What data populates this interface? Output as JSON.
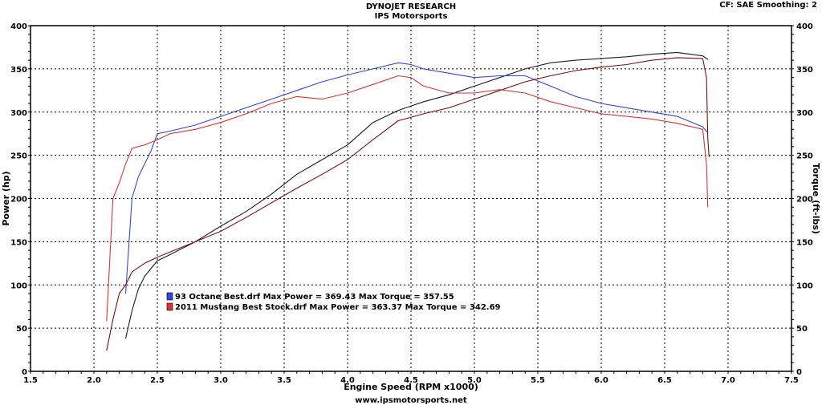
{
  "header": {
    "title": "DYNOJET RESEARCH",
    "subtitle": "IPS Motorsports",
    "settings": "CF: SAE  Smoothing: 2"
  },
  "footer": {
    "url": "www.ipsmotorsports.net"
  },
  "chart_data": {
    "type": "line",
    "xlabel": "Engine Speed (RPM x1000)",
    "ylabel_left": "Power (hp)",
    "ylabel_right": "Torque (ft-lbs)",
    "xlim": [
      1.5,
      7.5
    ],
    "ylim": [
      0,
      400
    ],
    "xticks": [
      1.5,
      2.0,
      2.5,
      3.0,
      3.5,
      4.0,
      4.5,
      5.0,
      5.5,
      6.0,
      6.5,
      7.0,
      7.5
    ],
    "yticks": [
      0,
      50,
      100,
      150,
      200,
      250,
      300,
      350,
      400
    ],
    "grid": true,
    "legend": [
      {
        "text": "93 Octane Best.drf Max Power = 369.43     Max Torque = 357.55",
        "color": "#3344dd"
      },
      {
        "text": "2011 Mustang Best Stock.drf Max Power = 363.37     Max Torque = 342.69",
        "color": "#dd3333"
      }
    ],
    "series": [
      {
        "name": "93 Octane Best.drf",
        "measure": "power",
        "color": "#1a1a2e",
        "x": [
          2.25,
          2.3,
          2.35,
          2.4,
          2.5,
          2.6,
          2.8,
          3.0,
          3.2,
          3.4,
          3.6,
          3.8,
          4.0,
          4.2,
          4.4,
          4.6,
          4.8,
          5.0,
          5.2,
          5.4,
          5.6,
          5.8,
          6.0,
          6.2,
          6.4,
          6.6,
          6.8,
          6.84
        ],
        "y": [
          38,
          70,
          95,
          110,
          128,
          135,
          150,
          168,
          185,
          205,
          228,
          245,
          262,
          288,
          302,
          312,
          320,
          330,
          340,
          350,
          357,
          360,
          362,
          364,
          367,
          369,
          365,
          361
        ]
      },
      {
        "name": "93 Octane Best.drf",
        "measure": "torque",
        "color": "#3344dd",
        "x": [
          2.25,
          2.3,
          2.35,
          2.4,
          2.45,
          2.5,
          2.6,
          2.8,
          3.0,
          3.2,
          3.4,
          3.6,
          3.8,
          4.0,
          4.2,
          4.4,
          4.5,
          4.6,
          4.8,
          5.0,
          5.2,
          5.4,
          5.6,
          5.8,
          6.0,
          6.2,
          6.4,
          6.6,
          6.8,
          6.84
        ],
        "y": [
          90,
          200,
          225,
          240,
          255,
          275,
          278,
          285,
          295,
          305,
          315,
          325,
          335,
          343,
          350,
          357,
          355,
          350,
          345,
          340,
          342,
          342,
          330,
          318,
          310,
          305,
          300,
          295,
          283,
          276
        ]
      },
      {
        "name": "2011 Mustang Best Stock.drf",
        "measure": "power",
        "color": "#7a1010",
        "x": [
          2.1,
          2.15,
          2.2,
          2.25,
          2.3,
          2.4,
          2.5,
          2.6,
          2.8,
          3.0,
          3.2,
          3.4,
          3.6,
          3.8,
          4.0,
          4.2,
          4.4,
          4.6,
          4.8,
          5.0,
          5.2,
          5.4,
          5.6,
          5.8,
          6.0,
          6.2,
          6.4,
          6.6,
          6.8,
          6.83,
          6.84,
          6.85
        ],
        "y": [
          24,
          60,
          90,
          100,
          115,
          125,
          132,
          138,
          150,
          162,
          178,
          195,
          212,
          228,
          245,
          268,
          290,
          298,
          305,
          315,
          325,
          335,
          342,
          348,
          352,
          355,
          360,
          363,
          362,
          340,
          270,
          248
        ]
      },
      {
        "name": "2011 Mustang Best Stock.drf",
        "measure": "torque",
        "color": "#dd3333",
        "x": [
          2.1,
          2.15,
          2.2,
          2.25,
          2.3,
          2.35,
          2.4,
          2.5,
          2.6,
          2.8,
          3.0,
          3.2,
          3.4,
          3.6,
          3.8,
          4.0,
          4.2,
          4.4,
          4.5,
          4.6,
          4.8,
          5.0,
          5.2,
          5.4,
          5.6,
          5.8,
          6.0,
          6.2,
          6.4,
          6.6,
          6.8,
          6.83,
          6.84
        ],
        "y": [
          58,
          200,
          218,
          240,
          258,
          260,
          262,
          268,
          275,
          280,
          288,
          298,
          310,
          318,
          315,
          322,
          332,
          342,
          340,
          330,
          322,
          322,
          326,
          322,
          312,
          305,
          298,
          295,
          292,
          287,
          280,
          240,
          190
        ]
      }
    ]
  }
}
